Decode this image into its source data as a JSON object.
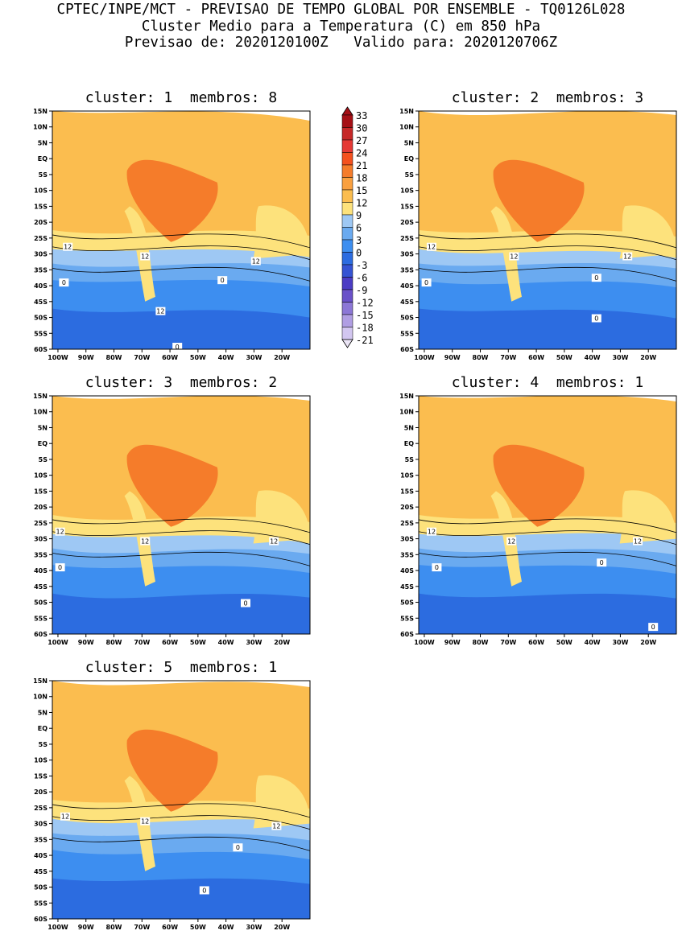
{
  "header": {
    "line1": "CPTEC/INPE/MCT - PREVISAO DE TEMPO GLOBAL POR ENSEMBLE - TQ0126L028",
    "line2": "Cluster Medio para a Temperatura (C) em 850 hPa",
    "line3": "Previsao de: 2020120100Z   Valido para: 2020120706Z"
  },
  "map": {
    "lat_ticks": [
      "15N",
      "10N",
      "5N",
      "EQ",
      "5S",
      "10S",
      "15S",
      "20S",
      "25S",
      "30S",
      "35S",
      "40S",
      "45S",
      "50S",
      "55S",
      "60S"
    ],
    "lon_ticks": [
      "100W",
      "90W",
      "80W",
      "70W",
      "60W",
      "50W",
      "40W",
      "30W",
      "20W"
    ],
    "lat_range": [
      -60,
      15
    ],
    "lon_range": [
      -102,
      -10
    ]
  },
  "colorbar": {
    "labels": [
      "33",
      "30",
      "27",
      "24",
      "21",
      "18",
      "15",
      "12",
      "9",
      "6",
      "3",
      "0",
      "-3",
      "-6",
      "-9",
      "-12",
      "-15",
      "-18",
      "-21"
    ],
    "colors": [
      "#a50f15",
      "#c62828",
      "#e53935",
      "#f4511e",
      "#f57c2a",
      "#f9a03f",
      "#fbbd4f",
      "#fde27c",
      "#9ec8f4",
      "#6aaaf0",
      "#3d8ef0",
      "#2c6ce0",
      "#3553d3",
      "#4b3cc4",
      "#6a51c9",
      "#8c77d6",
      "#b09ee3",
      "#d2c6f0"
    ]
  },
  "panels": [
    {
      "title": "cluster: 1  membros: 8",
      "contours": [
        "12",
        "12",
        "12",
        "12",
        "0",
        "0",
        "0"
      ]
    },
    {
      "title": "cluster: 2  membros: 3",
      "contours": [
        "12",
        "12",
        "12",
        "0",
        "0",
        "0"
      ]
    },
    {
      "title": "cluster: 3  membros: 2",
      "contours": [
        "12",
        "12",
        "12",
        "0",
        "0"
      ]
    },
    {
      "title": "cluster: 4  membros: 1",
      "contours": [
        "12",
        "12",
        "12",
        "0",
        "0",
        "0"
      ]
    },
    {
      "title": "cluster: 5  membros: 1",
      "contours": [
        "12",
        "12",
        "12",
        "0",
        "0"
      ]
    }
  ]
}
